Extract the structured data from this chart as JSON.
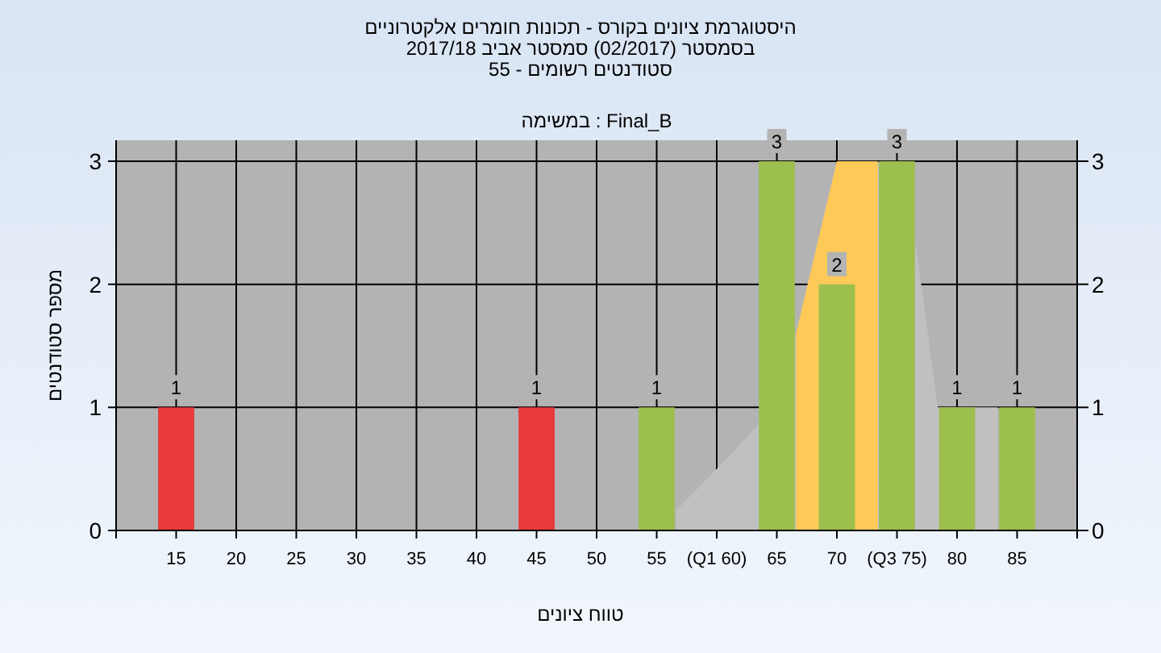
{
  "chart_data": {
    "type": "bar",
    "title": "היסטוגרמת ציונים בקורס - תכונות חומרים אלקטרוניים",
    "subtitle": "בסמסטר (02/2017) סמסטר אביב 2017/18",
    "annotations": [
      "סטודנטים רשומים - 55",
      "Final_B : במשימה"
    ],
    "xlabel": "טווח ציונים",
    "ylabel": "מספר סטודנטים",
    "series": [
      {
        "type": "area",
        "color": "#c0c0c0",
        "x": [
          56.6,
          60,
          63.4,
          66.6,
          70,
          73.4,
          76.6,
          78.4,
          81.6,
          83.4
        ],
        "values": [
          0.16,
          0.5,
          0.85,
          1.6,
          3,
          3,
          2.3,
          1,
          1,
          1
        ]
      },
      {
        "type": "area",
        "color": "#ffc957",
        "x": [
          66.6,
          70,
          73.4
        ],
        "values": [
          1.6,
          3,
          3
        ]
      },
      {
        "type": "bar",
        "x": [
          15,
          45,
          55,
          65,
          70,
          75,
          80,
          85
        ],
        "values": [
          1,
          1,
          1,
          3,
          2,
          3,
          1,
          1
        ],
        "value_labels": [
          "1",
          "1",
          "1",
          "3",
          "2",
          "3",
          "1",
          "1"
        ],
        "colors": [
          "#e8393b",
          "#e8393b",
          "#9cbf4e",
          "#9cbf4e",
          "#9cbf4e",
          "#9cbf4e",
          "#9cbf4e",
          "#9cbf4e"
        ]
      }
    ],
    "grid": true,
    "xlim": [
      10,
      90
    ],
    "xticks": [
      {
        "value": 10,
        "label": null
      },
      15,
      20,
      25,
      30,
      35,
      40,
      45,
      50,
      55,
      {
        "value": 60,
        "label": "(Q1 60)"
      },
      65,
      70,
      {
        "value": 75,
        "label": "(Q3 75)"
      },
      80,
      85,
      {
        "value": 90,
        "label": null
      }
    ],
    "ylim": [
      0,
      3.17
    ],
    "yticks": [
      0,
      1,
      2,
      3
    ],
    "y2lim": [
      0,
      3.17
    ],
    "y2ticks": [
      0,
      1,
      2,
      3
    ]
  }
}
